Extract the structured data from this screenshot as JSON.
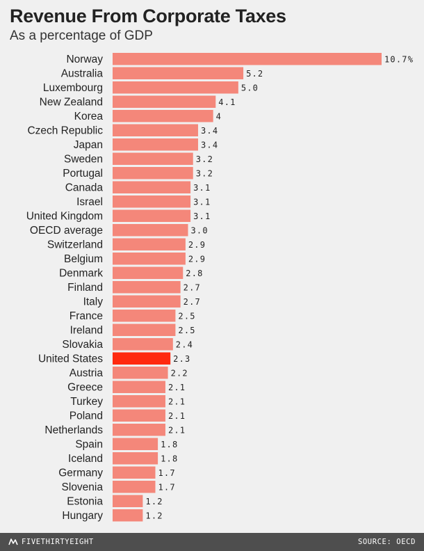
{
  "title": "Revenue From Corporate Taxes",
  "subtitle": "As a percentage of GDP",
  "footer": {
    "brand": "FIVETHIRTYEIGHT",
    "brand_icon": "fivethirtyeight-logo-icon",
    "source": "SOURCE: OECD"
  },
  "colors": {
    "bar": "#f4877a",
    "highlight": "#ff2a0f",
    "background": "#f0f0f0",
    "footer": "#4e4e4e"
  },
  "chart_data": {
    "type": "bar",
    "orientation": "horizontal",
    "title": "Revenue From Corporate Taxes",
    "subtitle": "As a percentage of GDP",
    "unit": "%",
    "xlim": [
      0,
      10.7
    ],
    "highlight": "United States",
    "categories": [
      "Norway",
      "Australia",
      "Luxembourg",
      "New Zealand",
      "Korea",
      "Czech Republic",
      "Japan",
      "Sweden",
      "Portugal",
      "Canada",
      "Israel",
      "United Kingdom",
      "OECD average",
      "Switzerland",
      "Belgium",
      "Denmark",
      "Finland",
      "Italy",
      "France",
      "Ireland",
      "Slovakia",
      "United States",
      "Austria",
      "Greece",
      "Turkey",
      "Poland",
      "Netherlands",
      "Spain",
      "Iceland",
      "Germany",
      "Slovenia",
      "Estonia",
      "Hungary"
    ],
    "values": [
      10.7,
      5.2,
      5.0,
      4.1,
      4,
      3.4,
      3.4,
      3.2,
      3.2,
      3.1,
      3.1,
      3.1,
      3.0,
      2.9,
      2.9,
      2.8,
      2.7,
      2.7,
      2.5,
      2.5,
      2.4,
      2.3,
      2.2,
      2.1,
      2.1,
      2.1,
      2.1,
      1.8,
      1.8,
      1.7,
      1.7,
      1.2,
      1.2
    ],
    "value_labels": [
      "10.7%",
      "5.2",
      "5.0",
      "4.1",
      "4",
      "3.4",
      "3.4",
      "3.2",
      "3.2",
      "3.1",
      "3.1",
      "3.1",
      "3.0",
      "2.9",
      "2.9",
      "2.8",
      "2.7",
      "2.7",
      "2.5",
      "2.5",
      "2.4",
      "2.3",
      "2.2",
      "2.1",
      "2.1",
      "2.1",
      "2.1",
      "1.8",
      "1.8",
      "1.7",
      "1.7",
      "1.2",
      "1.2"
    ]
  }
}
